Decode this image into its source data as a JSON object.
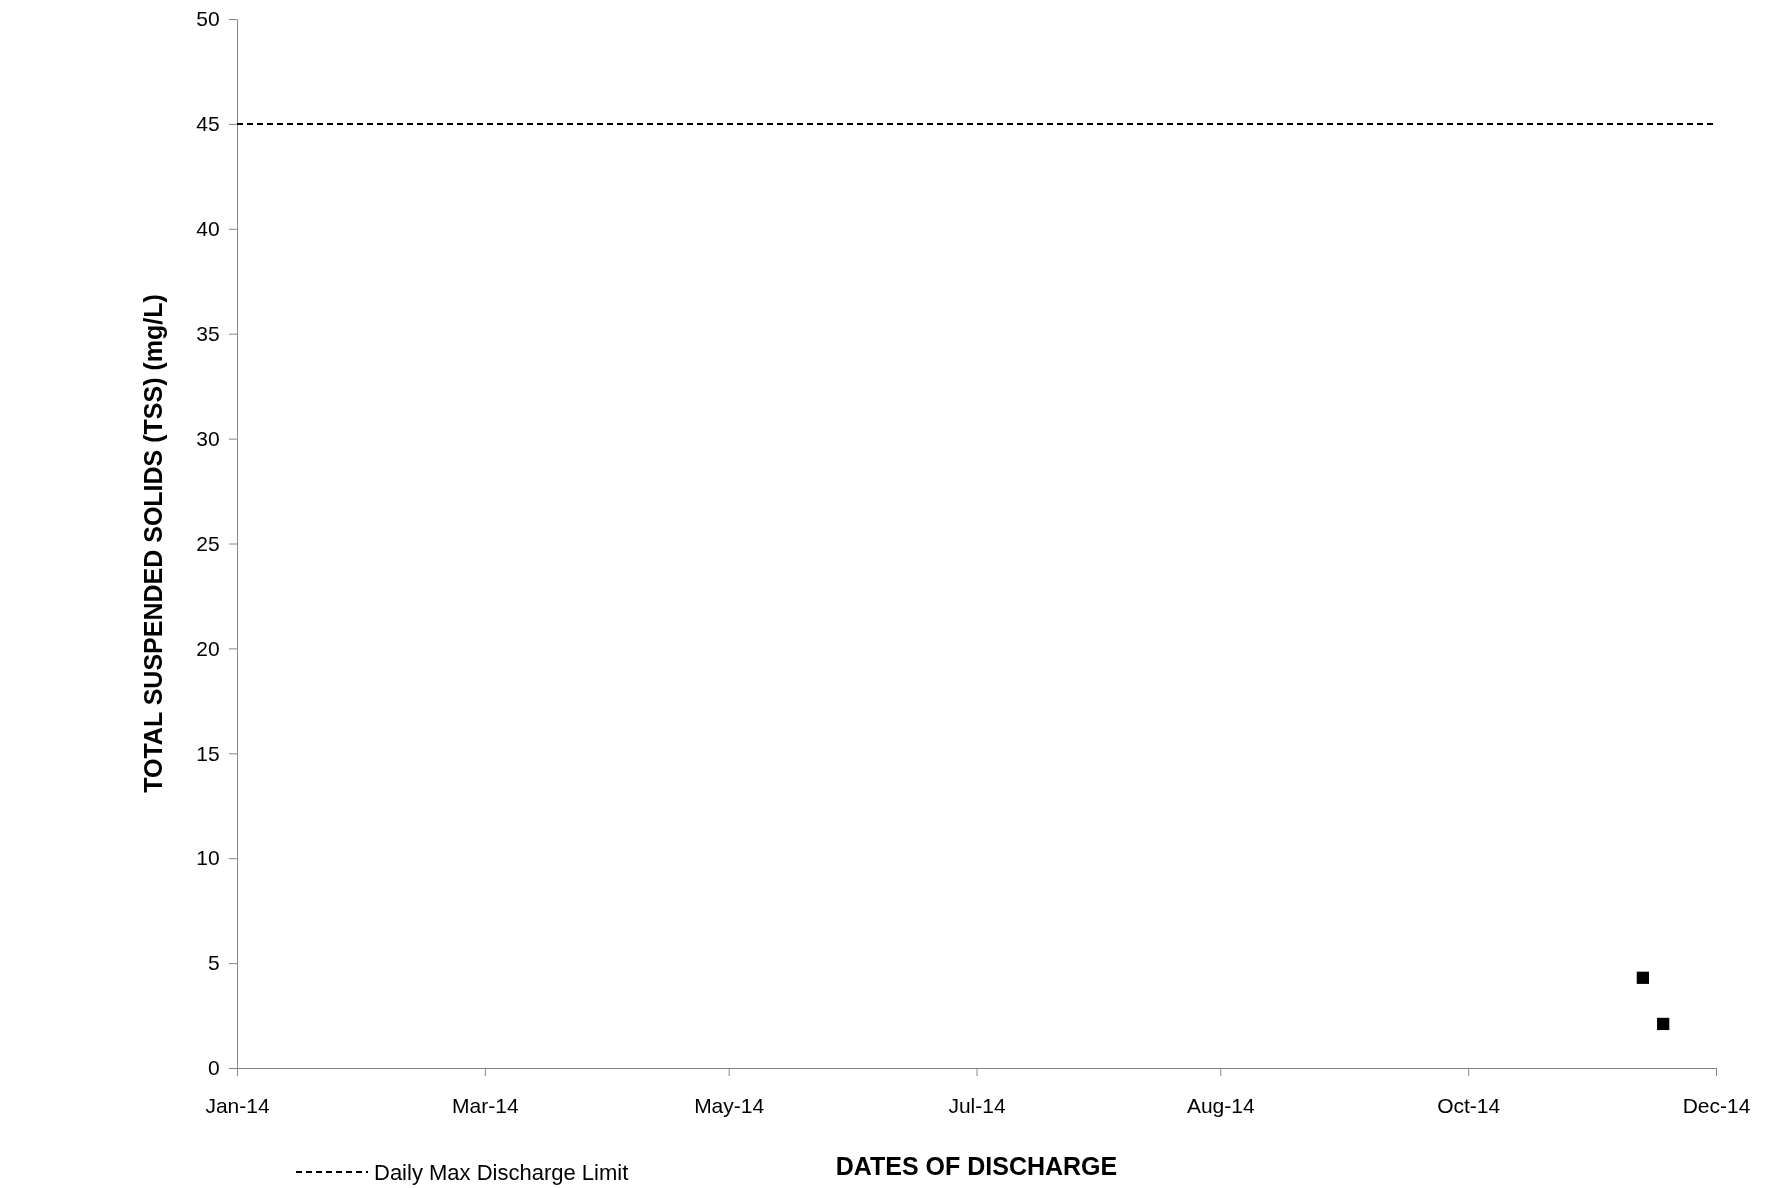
{
  "chart_data": {
    "type": "scatter",
    "xlabel": "DATES OF DISCHARGE",
    "ylabel": "TOTAL SUSPENDED SOLIDS (TSS) (mg/L)",
    "x": [
      "2014-12-13",
      "2014-12-18"
    ],
    "series": [
      {
        "color": "#000000",
        "values": [
          4.3,
          2.1
        ]
      }
    ],
    "marker": "square",
    "xlim": [
      "2014-01-01",
      "2014-12-31"
    ],
    "xticks": [
      {
        "value": "2014-01-01",
        "label": "Jan-14"
      },
      {
        "value": "2014-03-03",
        "label": "Mar-14"
      },
      {
        "value": "2014-05-02",
        "label": "May-14"
      },
      {
        "value": "2014-07-02",
        "label": "Jul-14"
      },
      {
        "value": "2014-08-31",
        "label": "Aug-14"
      },
      {
        "value": "2014-10-31",
        "label": "Oct-14"
      },
      {
        "value": "2014-12-31",
        "label": "Dec-14"
      }
    ],
    "ylim": [
      0,
      50
    ],
    "yticks": [
      0,
      5,
      10,
      15,
      20,
      25,
      30,
      35,
      40,
      45,
      50
    ],
    "ref_lines": [
      {
        "axis": "y",
        "value": 45,
        "label": "Daily Max Discharge Limit",
        "color": "#000000",
        "line_style": "dashed"
      }
    ],
    "legend": "bottom left",
    "grid": false
  }
}
